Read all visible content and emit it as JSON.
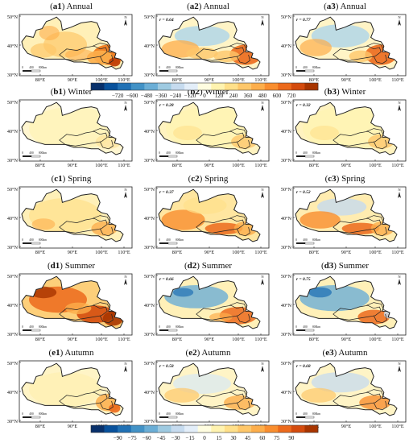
{
  "panels": [
    {
      "id": "a1",
      "season": "Annual",
      "r": "",
      "mode": "a1"
    },
    {
      "id": "a2",
      "season": "Annual",
      "r": "r = 0.64",
      "mode": "a2"
    },
    {
      "id": "a3",
      "season": "Annual",
      "r": "r = 0.77",
      "mode": "a3"
    },
    {
      "id": "b1",
      "season": "Winter",
      "r": "",
      "mode": "b1"
    },
    {
      "id": "b2",
      "season": "Winter",
      "r": "r = 0.28",
      "mode": "b2"
    },
    {
      "id": "b3",
      "season": "Winter",
      "r": "r = 0.32",
      "mode": "b3"
    },
    {
      "id": "c1",
      "season": "Spring",
      "r": "",
      "mode": "c1"
    },
    {
      "id": "c2",
      "season": "Spring",
      "r": "r = 0.37",
      "mode": "c2"
    },
    {
      "id": "c3",
      "season": "Spring",
      "r": "r = 0.52",
      "mode": "c3"
    },
    {
      "id": "d1",
      "season": "Summer",
      "r": "",
      "mode": "d1"
    },
    {
      "id": "d2",
      "season": "Summer",
      "r": "r = 0.66",
      "mode": "d2"
    },
    {
      "id": "d3",
      "season": "Summer",
      "r": "r = 0.75",
      "mode": "d3"
    },
    {
      "id": "e1",
      "season": "Autumn",
      "r": "",
      "mode": "e1"
    },
    {
      "id": "e2",
      "season": "Autumn",
      "r": "r = 0.58",
      "mode": "e2"
    },
    {
      "id": "e3",
      "season": "Autumn",
      "r": "r = 0.68",
      "mode": "e3"
    }
  ],
  "lat_labels": [
    "50°N",
    "40°N",
    "30°N"
  ],
  "lon_labels": [
    "80°E",
    "90°E",
    "100°E",
    "110°E"
  ],
  "scale_bar": {
    "zero": "0",
    "mid": "400",
    "end": "800km"
  },
  "north": "N",
  "colorbar_annual": {
    "ticks": [
      "−720",
      "−600",
      "−480",
      "−360",
      "−240",
      "−120",
      "0",
      "120",
      "240",
      "360",
      "480",
      "600",
      "720"
    ],
    "colors": [
      "#08306b",
      "#08519c",
      "#2171b5",
      "#4292c6",
      "#6baed6",
      "#9ecae1",
      "#c6dbef",
      "#e3eef9",
      "#fffde0",
      "#fff3b0",
      "#ffe08a",
      "#fec76a",
      "#fdae4b",
      "#f98e2f",
      "#ec6a1c",
      "#d44b0d",
      "#a83500"
    ]
  },
  "colorbar_season": {
    "ticks": [
      "−90",
      "−75",
      "−60",
      "−45",
      "−30",
      "−15",
      "0",
      "15",
      "30",
      "45",
      "60",
      "75",
      "90"
    ],
    "colors": [
      "#08306b",
      "#08519c",
      "#2171b5",
      "#4292c6",
      "#6baed6",
      "#9ecae1",
      "#c6dbef",
      "#e3eef9",
      "#fffde0",
      "#fff3b0",
      "#ffe08a",
      "#fec76a",
      "#fdae4b",
      "#f98e2f",
      "#ec6a1c",
      "#d44b0d",
      "#a83500"
    ]
  }
}
